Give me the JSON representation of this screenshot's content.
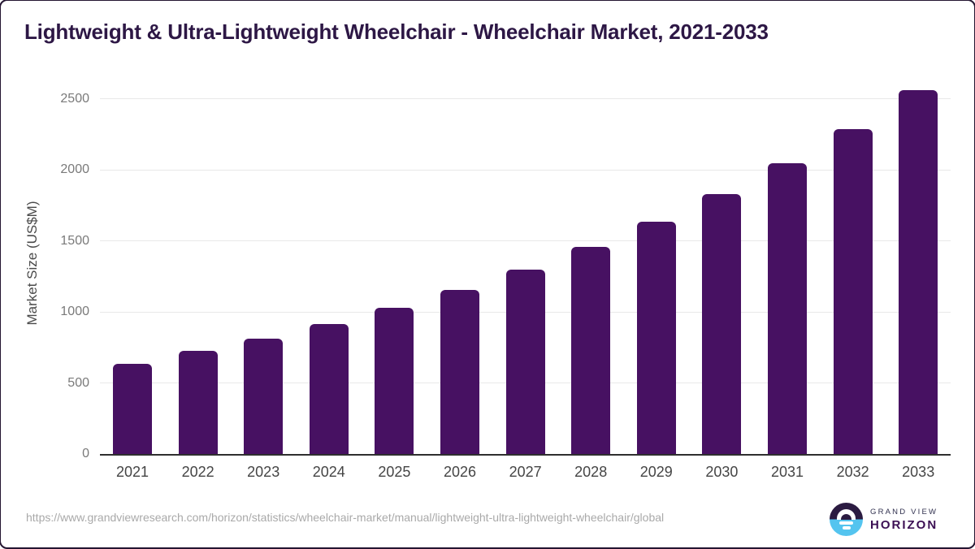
{
  "title": "Lightweight & Ultra-Lightweight Wheelchair - Wheelchair Market, 2021-2033",
  "chart_data": {
    "type": "bar",
    "title": "Lightweight & Ultra-Lightweight Wheelchair - Wheelchair Market, 2021-2033",
    "categories": [
      "2021",
      "2022",
      "2023",
      "2024",
      "2025",
      "2026",
      "2027",
      "2028",
      "2029",
      "2030",
      "2031",
      "2032",
      "2033"
    ],
    "values": [
      635,
      725,
      815,
      915,
      1030,
      1155,
      1300,
      1460,
      1635,
      1830,
      2050,
      2290,
      2560
    ],
    "xlabel": "",
    "ylabel": "Market Size (US$M)",
    "yticks": [
      0,
      500,
      1000,
      1500,
      2000,
      2500
    ],
    "ylim": [
      0,
      2700
    ],
    "grid": "horizontal",
    "legend": "none",
    "bar_color": "#471162"
  },
  "footer": {
    "source_url": "https://www.grandviewresearch.com/horizon/statistics/wheelchair-market/manual/lightweight-ultra-lightweight-wheelchair/global",
    "logo_line1": "GRAND VIEW",
    "logo_line2": "HORIZON"
  },
  "colors": {
    "bar": "#471162",
    "title_text": "#2d1745",
    "gridline": "#e8e8e8",
    "axis_line": "#2f2f2f",
    "y_tick_text": "#7a7a7a",
    "x_tick_text": "#454545",
    "url_text": "#a9a9a9",
    "logo_dark": "#2b1b41",
    "logo_blue": "#54c4ef"
  }
}
